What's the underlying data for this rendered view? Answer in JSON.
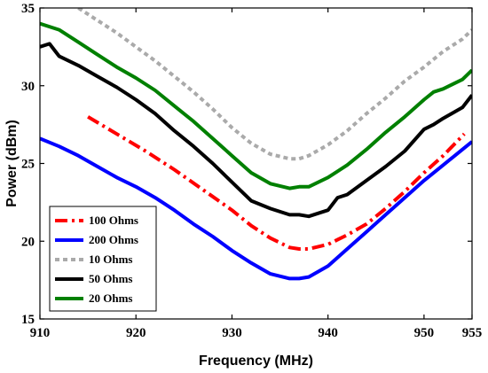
{
  "chart_data": {
    "type": "line",
    "title": "",
    "xlabel": "Frequency (MHz)",
    "ylabel": "Power (dBm)",
    "xlim": [
      910,
      955
    ],
    "ylim": [
      15,
      35
    ],
    "xticks": [
      910,
      920,
      930,
      940,
      950,
      955
    ],
    "yticks": [
      15,
      20,
      25,
      30,
      35
    ],
    "grid": false,
    "legend_position": "bottom-left",
    "series": [
      {
        "name": "100 Ohms",
        "color": "#ff0000",
        "style": "dashdot",
        "x": [
          915,
          918,
          921,
          924,
          927,
          930,
          932,
          934,
          936,
          937,
          938,
          940,
          942,
          944,
          946,
          948,
          950,
          952,
          954.2
        ],
        "y": [
          28.0,
          26.9,
          25.8,
          24.6,
          23.3,
          22.0,
          21.0,
          20.2,
          19.6,
          19.5,
          19.5,
          19.8,
          20.4,
          21.1,
          22.1,
          23.2,
          24.4,
          25.5,
          26.9
        ]
      },
      {
        "name": "200 Ohms",
        "color": "#0000ff",
        "style": "solid",
        "x": [
          910,
          912,
          914,
          916,
          918,
          920,
          922,
          924,
          926,
          928,
          930,
          932,
          934,
          936,
          937,
          938,
          940,
          942,
          944,
          946,
          948,
          950,
          952,
          954,
          955
        ],
        "y": [
          26.6,
          26.1,
          25.5,
          24.8,
          24.1,
          23.5,
          22.8,
          22.0,
          21.1,
          20.3,
          19.4,
          18.6,
          17.9,
          17.6,
          17.6,
          17.7,
          18.4,
          19.5,
          20.6,
          21.7,
          22.8,
          23.9,
          24.9,
          25.9,
          26.4
        ]
      },
      {
        "name": "10 Ohms",
        "color": "#aaaaaa",
        "style": "dotted",
        "x": [
          914,
          916,
          918,
          920,
          922,
          924,
          926,
          928,
          930,
          932,
          934,
          936,
          937,
          938,
          940,
          942,
          944,
          946,
          948,
          950,
          952,
          954,
          955
        ],
        "y": [
          35.0,
          34.2,
          33.4,
          32.5,
          31.6,
          30.6,
          29.6,
          28.5,
          27.3,
          26.3,
          25.6,
          25.3,
          25.3,
          25.5,
          26.2,
          27.1,
          28.2,
          29.2,
          30.3,
          31.2,
          32.2,
          33.0,
          33.6
        ]
      },
      {
        "name": "50 Ohms",
        "color": "#000000",
        "style": "solid",
        "x": [
          910,
          911,
          912,
          914,
          916,
          918,
          920,
          922,
          924,
          926,
          928,
          930,
          932,
          934,
          936,
          937,
          938,
          939,
          940,
          941,
          942,
          944,
          946,
          948,
          950,
          951,
          952,
          954,
          955
        ],
        "y": [
          32.5,
          32.7,
          31.9,
          31.3,
          30.6,
          29.9,
          29.1,
          28.2,
          27.1,
          26.1,
          25.0,
          23.8,
          22.6,
          22.1,
          21.7,
          21.7,
          21.6,
          21.8,
          22.0,
          22.8,
          23.0,
          23.9,
          24.8,
          25.8,
          27.2,
          27.5,
          27.9,
          28.6,
          29.4
        ]
      },
      {
        "name": "20 Ohms",
        "color": "#008000",
        "style": "solid",
        "x": [
          910,
          912,
          914,
          916,
          918,
          920,
          922,
          924,
          926,
          928,
          930,
          932,
          934,
          936,
          937,
          938,
          940,
          942,
          944,
          946,
          948,
          950,
          951,
          952,
          954,
          955
        ],
        "y": [
          34.0,
          33.6,
          32.8,
          32.0,
          31.2,
          30.5,
          29.7,
          28.7,
          27.7,
          26.6,
          25.5,
          24.4,
          23.7,
          23.4,
          23.5,
          23.5,
          24.1,
          24.9,
          25.9,
          27.0,
          28.0,
          29.1,
          29.6,
          29.8,
          30.4,
          31.0
        ]
      }
    ]
  }
}
